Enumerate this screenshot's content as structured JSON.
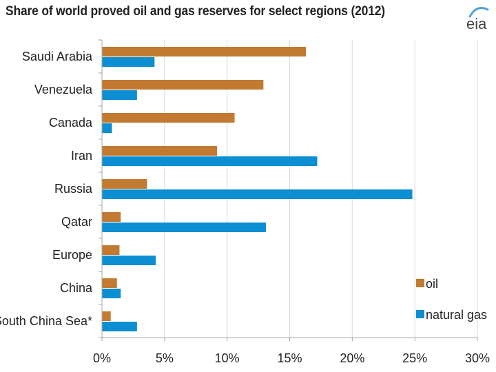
{
  "logo": {
    "text": "eia",
    "icon": "eia-logo-icon"
  },
  "colors": {
    "oil": "#C27A31",
    "gas": "#0C8ED3",
    "grid": "#D9D9D9",
    "axis": "#A6A6A6",
    "logo_text": "#444444",
    "logo_accent": "#4FA3D9"
  },
  "chart_data": {
    "type": "bar",
    "orientation": "horizontal",
    "title": "Share of world proved oil and gas reserves for select regions (2012)",
    "categories": [
      "Saudi Arabia",
      "Venezuela",
      "Canada",
      "Iran",
      "Russia",
      "Qatar",
      "Europe",
      "China",
      "South China Sea*"
    ],
    "series": [
      {
        "name": "oil",
        "values": [
          16.3,
          12.9,
          10.6,
          9.2,
          3.6,
          1.5,
          1.4,
          1.2,
          0.7
        ]
      },
      {
        "name": "natural gas",
        "values": [
          4.2,
          2.8,
          0.8,
          17.2,
          24.8,
          13.1,
          4.3,
          1.5,
          2.8
        ]
      }
    ],
    "xlim": [
      0,
      30
    ],
    "xticks": [
      0,
      5,
      10,
      15,
      20,
      25,
      30
    ],
    "xtick_labels": [
      "0%",
      "5%",
      "10%",
      "15%",
      "20%",
      "25%",
      "30%"
    ],
    "xlabel": "",
    "ylabel": "",
    "grid": true,
    "legend": {
      "position": "bottom-right",
      "entries": [
        "oil",
        "natural gas"
      ]
    }
  }
}
